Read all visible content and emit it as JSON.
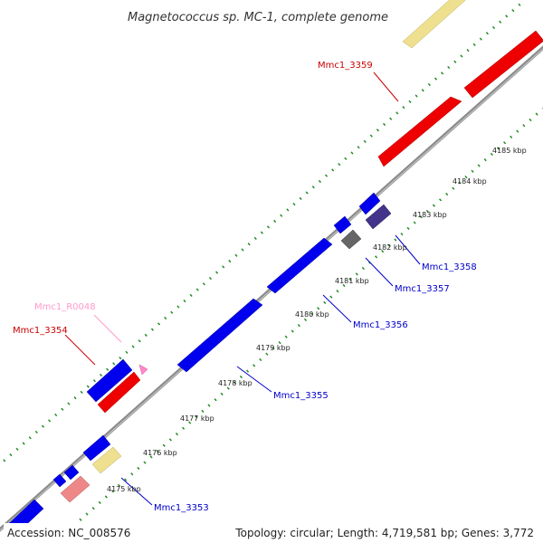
{
  "title": "Magnetococcus sp. MC-1, complete genome",
  "footer": {
    "accession": "Accession: NC_008576",
    "summary": "Topology: circular; Length: 4,719,581 bp; Genes: 3,772"
  },
  "scale_ticks": [
    "4175 kbp",
    "4176 kbp",
    "4177 kbp",
    "4178 kbp",
    "4179 kbp",
    "4180 kbp",
    "4181 kbp",
    "4182 kbp",
    "4183 kbp",
    "4184 kbp",
    "4185 kbp"
  ],
  "gene_labels": [
    {
      "text": "Mmc1_3359",
      "color": "#cc0000"
    },
    {
      "text": "Mmc1_R0048",
      "color": "#ff99cc"
    },
    {
      "text": "Mmc1_3354",
      "color": "#cc0000"
    },
    {
      "text": "Mmc1_3358",
      "color": "#0000cc"
    },
    {
      "text": "Mmc1_3357",
      "color": "#0000cc"
    },
    {
      "text": "Mmc1_3356",
      "color": "#0000cc"
    },
    {
      "text": "Mmc1_3355",
      "color": "#0000cc"
    },
    {
      "text": "Mmc1_3353",
      "color": "#0000cc"
    }
  ],
  "colors": {
    "backbone": "#8c8c8c",
    "tick_dots": "#228b22",
    "gene_blue": "#0000ee",
    "gene_red": "#ee0000",
    "gene_navy": "#44338a",
    "gene_gray": "#666666",
    "gene_yellow": "#eee08e",
    "gene_pink": "#ee8888",
    "rna_pink": "#ff88cc"
  }
}
